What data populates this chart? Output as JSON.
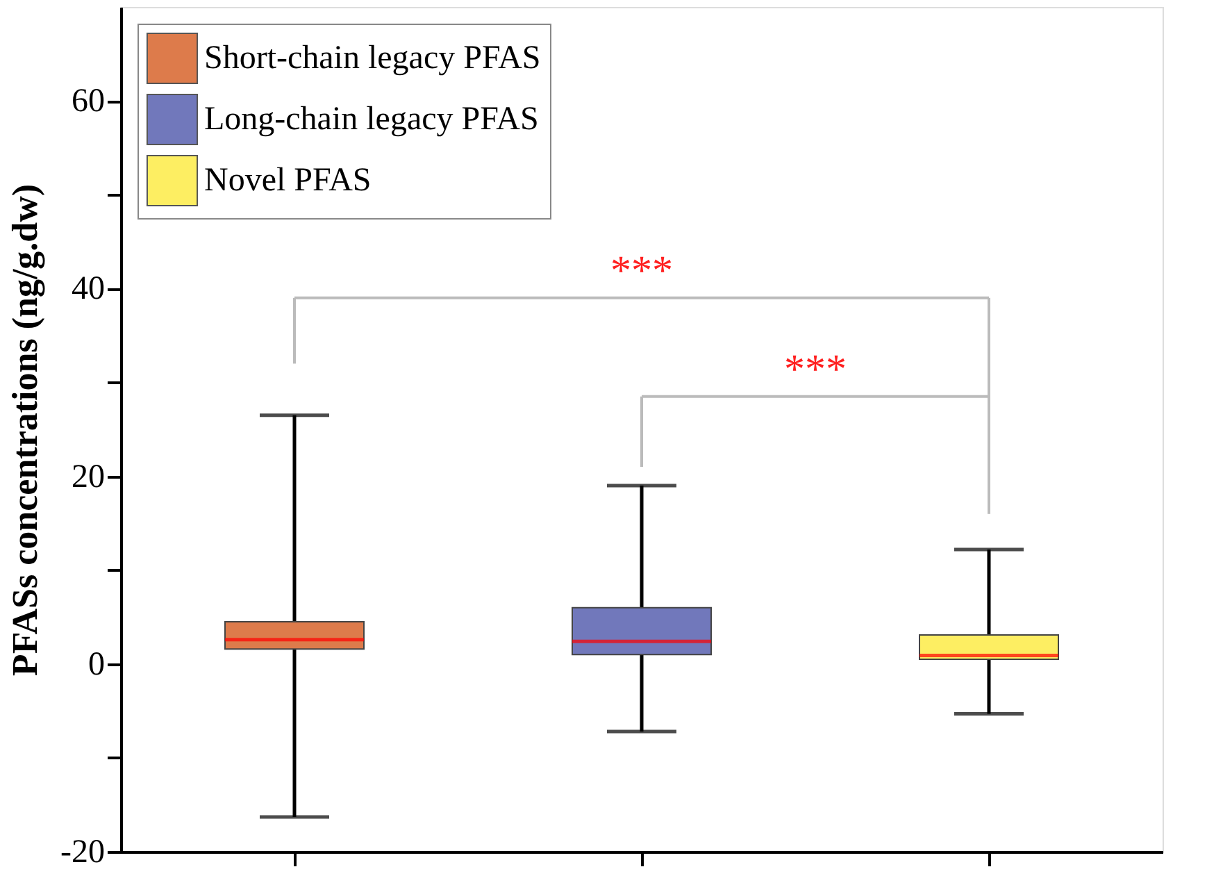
{
  "chart_data": {
    "type": "box",
    "ylabel": "PFASs concentrations (ng/g.dw)",
    "categories": [
      null,
      null,
      null
    ],
    "series": [
      {
        "name": "Short-chain legacy PFAS",
        "color": "#dd7b4b",
        "boxes": [
          {
            "low": -16.3,
            "q1": 1.6,
            "median": 2.6,
            "q3": 4.5,
            "high": 26.5
          },
          null,
          null
        ]
      },
      {
        "name": "Long-chain legacy PFAS",
        "color": "#7178bb",
        "boxes": [
          null,
          {
            "low": -7.2,
            "q1": 1.0,
            "median": 2.4,
            "q3": 6.0,
            "high": 19.0
          },
          null
        ]
      },
      {
        "name": "Novel PFAS",
        "color": "#fdee62",
        "boxes": [
          null,
          null,
          {
            "low": -5.3,
            "q1": 0.5,
            "median": 0.9,
            "q3": 3.1,
            "high": 12.2
          }
        ]
      }
    ],
    "ylim": [
      -20,
      70
    ],
    "yticks": [
      -20,
      {
        "value": -10,
        "label": null
      },
      0,
      {
        "value": 10,
        "label": null
      },
      20,
      {
        "value": 30,
        "label": null
      },
      40,
      {
        "value": 50,
        "label": null
      },
      60
    ],
    "tick_labels": "y",
    "grid": false,
    "legend": "top left",
    "annotations": [
      "***",
      "***"
    ]
  }
}
